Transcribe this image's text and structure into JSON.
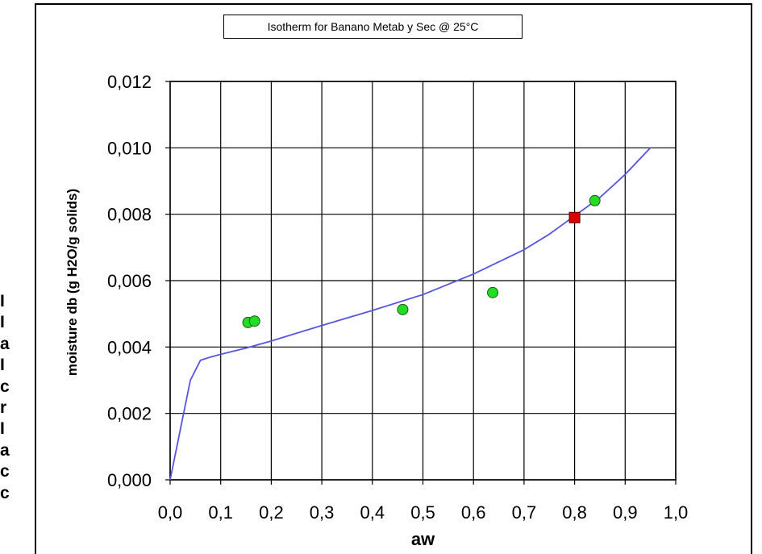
{
  "chart_data": {
    "type": "scatter",
    "title": "Isotherm for Banano Metab y Sec @ 25°C",
    "xlabel": "aw",
    "ylabel": "moisture db  (g H2O/g solids)",
    "xlim": [
      0.0,
      1.0
    ],
    "ylim": [
      0.0,
      0.012
    ],
    "x_ticks": [
      "0,0",
      "0,1",
      "0,2",
      "0,3",
      "0,4",
      "0,5",
      "0,6",
      "0,7",
      "0,8",
      "0,9",
      "1,0"
    ],
    "y_ticks": [
      "0,000",
      "0,002",
      "0,004",
      "0,006",
      "0,008",
      "0,010",
      "0,012"
    ],
    "grid": true,
    "series": [
      {
        "marker": "circle",
        "color": "#22dd22",
        "x": [
          0.154,
          0.167,
          0.46,
          0.638,
          0.84
        ],
        "y": [
          0.00474,
          0.00478,
          0.00513,
          0.00564,
          0.00841
        ]
      },
      {
        "marker": "square",
        "color": "#dd0000",
        "x": [
          0.8
        ],
        "y": [
          0.0079
        ]
      },
      {
        "type": "line",
        "color": "#5555dd",
        "x": [
          0.0,
          0.02,
          0.04,
          0.06,
          0.08,
          0.1,
          0.15,
          0.2,
          0.3,
          0.4,
          0.5,
          0.6,
          0.7,
          0.75,
          0.8,
          0.85,
          0.9,
          0.95
        ],
        "y": [
          0.0,
          0.0015,
          0.003,
          0.0036,
          0.0037,
          0.00378,
          0.00397,
          0.00418,
          0.00465,
          0.0051,
          0.00558,
          0.0062,
          0.00693,
          0.0074,
          0.00795,
          0.0085,
          0.0092,
          0.01
        ]
      }
    ]
  },
  "left_letters": [
    "I",
    "I",
    "a",
    "I",
    "c",
    "r",
    "I",
    "a",
    "c",
    "c"
  ]
}
